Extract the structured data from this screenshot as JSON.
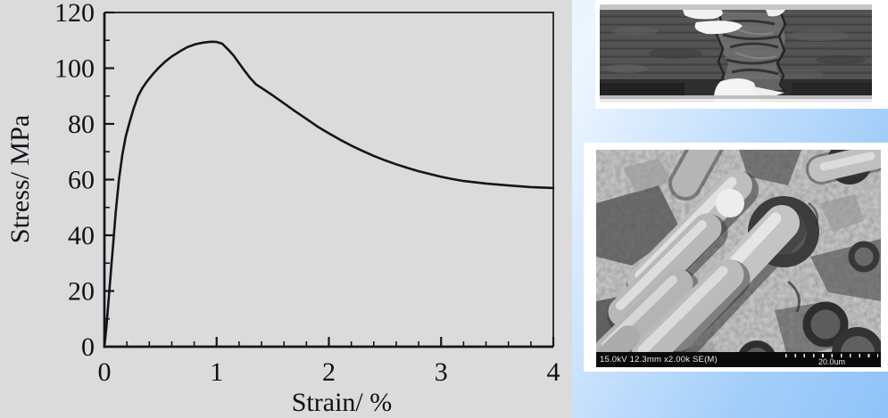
{
  "colors": {
    "panel_gray": "#dbdbdb",
    "curve_black": "#14141c",
    "background_blue": "#9ccbfa",
    "background_blue_light": "#eef6ff",
    "frame_white": "#ffffff",
    "sem_bar_black": "#0a0a0a"
  },
  "chart_data": {
    "type": "line",
    "title": "",
    "xlabel": "Strain/ %",
    "ylabel": "Stress/ MPa",
    "xlim": [
      0,
      4
    ],
    "ylim": [
      0,
      120
    ],
    "x_major_ticks": [
      0,
      1,
      2,
      3,
      4
    ],
    "x_tick_labels": [
      "0",
      "1",
      "2",
      "3",
      "4"
    ],
    "x_minor_step": 0.2,
    "y_major_ticks": [
      0,
      20,
      40,
      60,
      80,
      100,
      120
    ],
    "y_tick_labels": [
      "0",
      "20",
      "40",
      "60",
      "80",
      "100",
      "120"
    ],
    "y_minor_step": 10,
    "grid": false,
    "legend": "none",
    "series": [
      {
        "name": "stress-strain-curve",
        "points": [
          [
            0,
            0
          ],
          [
            0.02,
            8
          ],
          [
            0.04,
            18
          ],
          [
            0.06,
            28
          ],
          [
            0.08,
            38
          ],
          [
            0.1,
            48
          ],
          [
            0.13,
            60
          ],
          [
            0.16,
            69
          ],
          [
            0.19,
            75.5
          ],
          [
            0.22,
            80
          ],
          [
            0.26,
            85.5
          ],
          [
            0.3,
            90
          ],
          [
            0.34,
            93
          ],
          [
            0.38,
            95.3
          ],
          [
            0.43,
            97.8
          ],
          [
            0.48,
            100
          ],
          [
            0.54,
            102.3
          ],
          [
            0.6,
            104.2
          ],
          [
            0.67,
            106
          ],
          [
            0.74,
            107.6
          ],
          [
            0.81,
            108.6
          ],
          [
            0.88,
            109.2
          ],
          [
            0.95,
            109.5
          ],
          [
            1.0,
            109.4
          ],
          [
            1.05,
            108.8
          ],
          [
            1.1,
            106.8
          ],
          [
            1.15,
            104.6
          ],
          [
            1.2,
            101.8
          ],
          [
            1.25,
            99
          ],
          [
            1.3,
            96.4
          ],
          [
            1.35,
            94.2
          ],
          [
            1.42,
            92.4
          ],
          [
            1.5,
            90.2
          ],
          [
            1.6,
            87.4
          ],
          [
            1.7,
            84.5
          ],
          [
            1.8,
            81.8
          ],
          [
            1.9,
            79
          ],
          [
            2.0,
            76.6
          ],
          [
            2.1,
            74.3
          ],
          [
            2.2,
            72.2
          ],
          [
            2.3,
            70.3
          ],
          [
            2.4,
            68.5
          ],
          [
            2.5,
            66.9
          ],
          [
            2.6,
            65.5
          ],
          [
            2.7,
            64.2
          ],
          [
            2.8,
            63
          ],
          [
            2.9,
            62
          ],
          [
            3.0,
            61
          ],
          [
            3.1,
            60.2
          ],
          [
            3.2,
            59.5
          ],
          [
            3.4,
            58.6
          ],
          [
            3.6,
            57.9
          ],
          [
            3.8,
            57.3
          ],
          [
            4.0,
            57
          ]
        ]
      }
    ]
  },
  "micrographs": {
    "optical": {
      "name": "fractured-specimen-photo"
    },
    "sem": {
      "name": "sem-fiber-pullout-image",
      "info_text": "15.0kV 12.3mm x2.00k SE(M)",
      "scale_text": "20.0um"
    }
  }
}
